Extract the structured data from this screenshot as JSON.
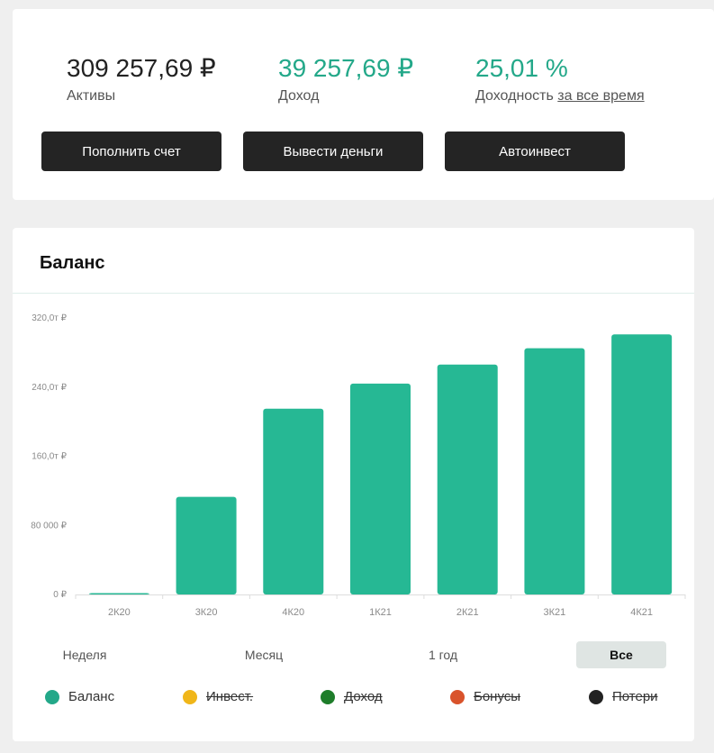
{
  "summary": {
    "assets": {
      "value": "309 257,69 ₽",
      "label": "Активы"
    },
    "income": {
      "value": "39 257,69 ₽",
      "label": "Доход"
    },
    "yield": {
      "value": "25,01 %",
      "label": "Доходность",
      "link": "за все время"
    },
    "buttons": {
      "deposit": "Пополнить счет",
      "withdraw": "Вывести деньги",
      "autoinvest": "Автоинвест"
    }
  },
  "balance": {
    "title": "Баланс",
    "periods": {
      "week": "Неделя",
      "month": "Месяц",
      "year": "1 год",
      "all": "Все"
    },
    "active_period": "all",
    "legend": [
      {
        "label": "Баланс",
        "color": "#23a889",
        "enabled": true
      },
      {
        "label": "Инвест.",
        "color": "#f0b619",
        "enabled": false
      },
      {
        "label": "Доход",
        "color": "#1e7d2a",
        "enabled": false
      },
      {
        "label": "Бонусы",
        "color": "#d9532b",
        "enabled": false
      },
      {
        "label": "Потери",
        "color": "#222222",
        "enabled": false
      }
    ]
  },
  "chart_data": {
    "type": "bar",
    "categories": [
      "2К20",
      "3К20",
      "4К20",
      "1К21",
      "2К21",
      "3К21",
      "4К21"
    ],
    "values": [
      1000,
      113000,
      215000,
      244000,
      266000,
      285000,
      301000
    ],
    "yticks": [
      0,
      80000,
      160000,
      240000,
      320000
    ],
    "ytick_labels": [
      "0 ₽",
      "80 000 ₽",
      "160,0т ₽",
      "240,0т ₽",
      "320,0т ₽"
    ],
    "ylim": [
      0,
      320000
    ],
    "bar_color": "#26b894",
    "title": "",
    "xlabel": "",
    "ylabel": ""
  }
}
